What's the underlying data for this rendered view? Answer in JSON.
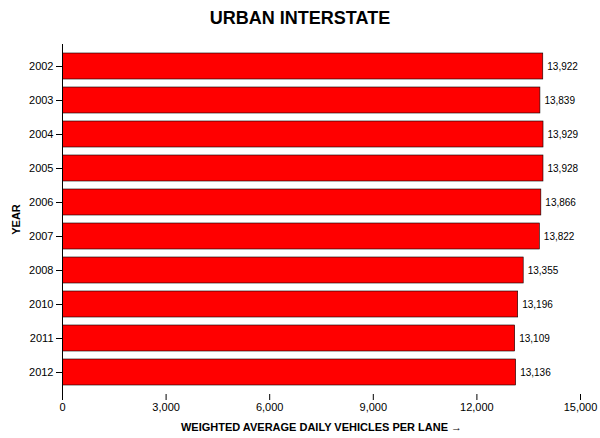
{
  "chart_data": {
    "type": "bar",
    "orientation": "horizontal",
    "title": "URBAN INTERSTATE",
    "xlabel": "WEIGHTED AVERAGE DAILY VEHICLES PER LANE",
    "ylabel": "YEAR",
    "categories": [
      "2002",
      "2003",
      "2004",
      "2005",
      "2006",
      "2007",
      "2008",
      "2010",
      "2011",
      "2012"
    ],
    "values": [
      13922,
      13839,
      13929,
      13928,
      13866,
      13822,
      13355,
      13196,
      13109,
      13136
    ],
    "value_labels": [
      "13,922",
      "13,839",
      "13,929",
      "13,928",
      "13,866",
      "13,822",
      "13,355",
      "13,196",
      "13,109",
      "13,136"
    ],
    "data_labels": true,
    "color": "#FF0000",
    "xlim": [
      0,
      15000
    ],
    "xticks": [
      0,
      {
        "value": 3000,
        "label": "3,000"
      },
      {
        "value": 6000,
        "label": "6,000"
      },
      {
        "value": 9000,
        "label": "9,000"
      },
      {
        "value": 12000,
        "label": "12,000"
      },
      {
        "value": 15000,
        "label": "15,000"
      }
    ],
    "grid": false
  }
}
